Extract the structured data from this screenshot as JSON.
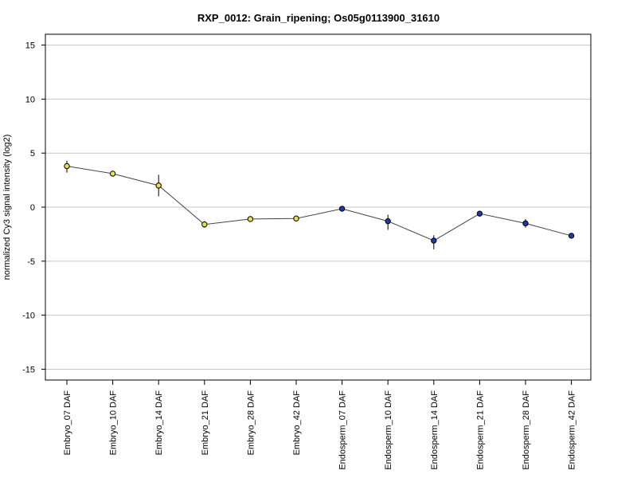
{
  "chart_data": {
    "type": "line",
    "title": "RXP_0012: Grain_ripening; Os05g0113900_31610",
    "xlabel": "",
    "ylabel": "normalized Cy3 signal intensity (log2)",
    "ylim": [
      -16,
      16
    ],
    "yticks": [
      -15,
      -10,
      -5,
      0,
      5,
      10,
      15
    ],
    "grid": true,
    "categories": [
      "Embryo_07 DAF",
      "Embryo_10 DAF",
      "Embryo_14 DAF",
      "Embryo_21 DAF",
      "Embryo_28 DAF",
      "Embryo_42 DAF",
      "Endosperm_07 DAF",
      "Endosperm_10 DAF",
      "Endosperm_14 DAF",
      "Endosperm_21 DAF",
      "Endosperm_28 DAF",
      "Endosperm_42 DAF"
    ],
    "values": [
      3.8,
      3.1,
      2.0,
      -1.6,
      -1.1,
      -1.05,
      -0.15,
      -1.3,
      -3.1,
      -0.6,
      -1.5,
      -2.65
    ],
    "error_low": [
      3.2,
      2.9,
      1.0,
      -1.9,
      -1.3,
      -1.25,
      -0.35,
      -2.1,
      -3.9,
      -0.8,
      -1.9,
      -2.9
    ],
    "error_high": [
      4.3,
      3.3,
      3.0,
      -1.3,
      -0.9,
      -0.85,
      0.05,
      -0.7,
      -2.6,
      -0.4,
      -1.1,
      -2.4
    ],
    "point_colors": [
      "#e6e04a",
      "#e6e04a",
      "#e6e04a",
      "#e6e04a",
      "#e6e04a",
      "#e6e04a",
      "#1e3aa8",
      "#1e3aa8",
      "#1e3aa8",
      "#1e3aa8",
      "#1e3aa8",
      "#1e3aa8"
    ]
  }
}
